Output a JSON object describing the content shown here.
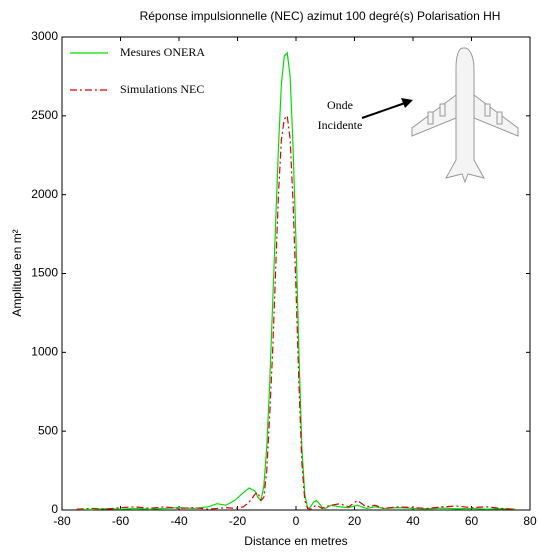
{
  "chart_data": {
    "type": "line",
    "title": "Réponse impulsionnelle (NEC) azimut 100 degré(s) Polarisation HH",
    "xlabel": "Distance en metres",
    "ylabel": "Amplitude en m²",
    "annotation": [
      "Onde",
      "Incidente"
    ],
    "x": [
      -75,
      -70,
      -65,
      -60,
      -55,
      -50,
      -45,
      -40,
      -35,
      -30,
      -27,
      -24,
      -21,
      -18,
      -16,
      -14,
      -13,
      -12,
      -11,
      -10,
      -9,
      -8,
      -7,
      -6,
      -5,
      -4,
      -3,
      -2,
      -1,
      0,
      1,
      2,
      3,
      4,
      5,
      6,
      7,
      8,
      9,
      10,
      12,
      15,
      18,
      21,
      24,
      27,
      30,
      35,
      40,
      45,
      50,
      55,
      60,
      65,
      70,
      75
    ],
    "series": [
      {
        "name": "Mesures ONERA",
        "color": "#00e000",
        "linestyle": "solid",
        "values": [
          5,
          3,
          8,
          5,
          10,
          5,
          10,
          15,
          10,
          20,
          40,
          30,
          60,
          110,
          140,
          120,
          80,
          60,
          150,
          400,
          800,
          1300,
          1800,
          2300,
          2700,
          2880,
          2900,
          2750,
          2300,
          1700,
          1000,
          400,
          100,
          10,
          20,
          50,
          60,
          40,
          15,
          10,
          30,
          20,
          15,
          30,
          10,
          20,
          10,
          15,
          10,
          8,
          12,
          8,
          10,
          5,
          8,
          5
        ]
      },
      {
        "name": "Simulations NEC",
        "color": "#e00000",
        "linestyle": "dashdot",
        "values": [
          5,
          10,
          5,
          15,
          20,
          10,
          20,
          10,
          15,
          5,
          10,
          15,
          10,
          20,
          50,
          100,
          110,
          60,
          80,
          250,
          600,
          1000,
          1500,
          2000,
          2350,
          2480,
          2500,
          2350,
          1950,
          1400,
          800,
          300,
          60,
          10,
          5,
          20,
          30,
          20,
          10,
          20,
          30,
          40,
          20,
          60,
          20,
          30,
          10,
          20,
          15,
          10,
          20,
          25,
          15,
          20,
          10,
          5
        ]
      }
    ],
    "xlim": [
      -80,
      80
    ],
    "xticks": [
      -80,
      -60,
      -40,
      -20,
      0,
      20,
      40,
      60,
      80
    ],
    "ylim": [
      0,
      3000
    ],
    "yticks": [
      0,
      500,
      1000,
      1500,
      2000,
      2500,
      3000
    ],
    "grid": false,
    "legend": "upper left"
  }
}
